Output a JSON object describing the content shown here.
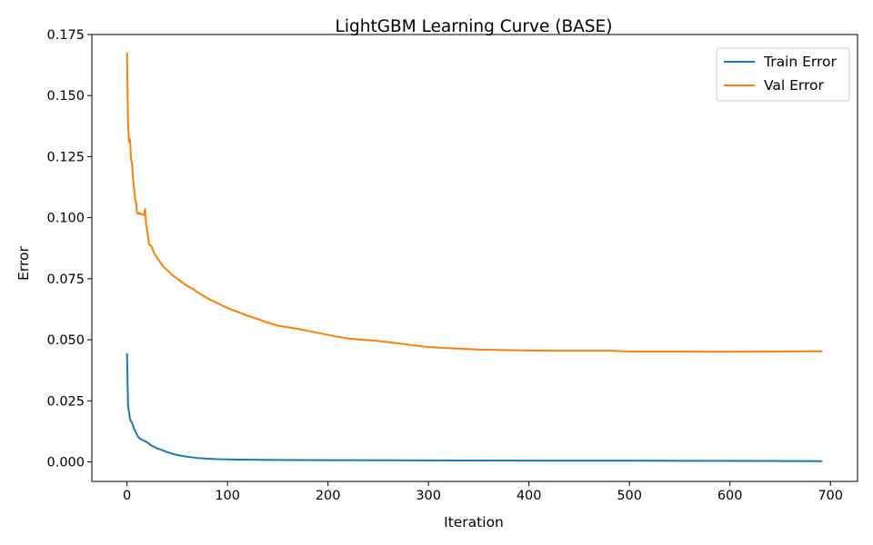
{
  "chart_data": {
    "type": "line",
    "title": "LightGBM Learning Curve (BASE)",
    "xlabel": "Iteration",
    "ylabel": "Error",
    "xlim": [
      -35,
      727
    ],
    "ylim": [
      -0.008,
      0.175
    ],
    "xticks": [
      0,
      100,
      200,
      300,
      400,
      500,
      600,
      700
    ],
    "yticks": [
      0.0,
      0.025,
      0.05,
      0.075,
      0.1,
      0.125,
      0.15,
      0.175
    ],
    "ytick_labels": [
      "0.000",
      "0.025",
      "0.050",
      "0.075",
      "0.100",
      "0.125",
      "0.150",
      "0.175"
    ],
    "grid": false,
    "legend_position": "upper right",
    "series": [
      {
        "name": "Train Error",
        "color": "#1f77b4",
        "x": [
          0,
          1,
          2,
          3,
          4,
          5,
          6,
          7,
          8,
          9,
          10,
          12,
          14,
          16,
          18,
          20,
          22,
          25,
          28,
          30,
          35,
          40,
          45,
          50,
          60,
          70,
          80,
          90,
          100,
          120,
          150,
          200,
          300,
          400,
          500,
          600,
          692
        ],
        "y": [
          0.0445,
          0.023,
          0.0205,
          0.0175,
          0.0165,
          0.016,
          0.015,
          0.0135,
          0.0128,
          0.012,
          0.011,
          0.0098,
          0.0093,
          0.0088,
          0.0085,
          0.008,
          0.0074,
          0.0065,
          0.006,
          0.0055,
          0.0048,
          0.004,
          0.0033,
          0.0028,
          0.0021,
          0.0016,
          0.0013,
          0.0011,
          0.001,
          0.0009,
          0.0008,
          0.0007,
          0.0006,
          0.0005,
          0.0005,
          0.0004,
          0.0003
        ]
      },
      {
        "name": "Val Error",
        "color": "#ff7f0e",
        "x": [
          0,
          1,
          2,
          3,
          4,
          5,
          6,
          7,
          8,
          9,
          10,
          11,
          12,
          13,
          15,
          17,
          18,
          19,
          20,
          22,
          24,
          25,
          27,
          30,
          33,
          36,
          40,
          45,
          50,
          55,
          60,
          65,
          70,
          80,
          90,
          100,
          110,
          120,
          130,
          140,
          150,
          170,
          200,
          220,
          250,
          280,
          300,
          320,
          350,
          400,
          420,
          450,
          480,
          500,
          550,
          580,
          600,
          650,
          692
        ],
        "y": [
          0.1675,
          0.139,
          0.131,
          0.132,
          0.124,
          0.122,
          0.116,
          0.112,
          0.108,
          0.106,
          0.102,
          0.1015,
          0.102,
          0.1015,
          0.1015,
          0.101,
          0.1035,
          0.097,
          0.095,
          0.089,
          0.0885,
          0.0875,
          0.0855,
          0.0835,
          0.0818,
          0.08,
          0.0785,
          0.0765,
          0.075,
          0.0735,
          0.072,
          0.071,
          0.0695,
          0.067,
          0.065,
          0.063,
          0.0615,
          0.0598,
          0.0585,
          0.057,
          0.0558,
          0.0545,
          0.052,
          0.0505,
          0.0495,
          0.048,
          0.047,
          0.0466,
          0.046,
          0.0456,
          0.0455,
          0.0455,
          0.0455,
          0.0452,
          0.0452,
          0.0451,
          0.0451,
          0.0452,
          0.0453
        ]
      }
    ]
  }
}
